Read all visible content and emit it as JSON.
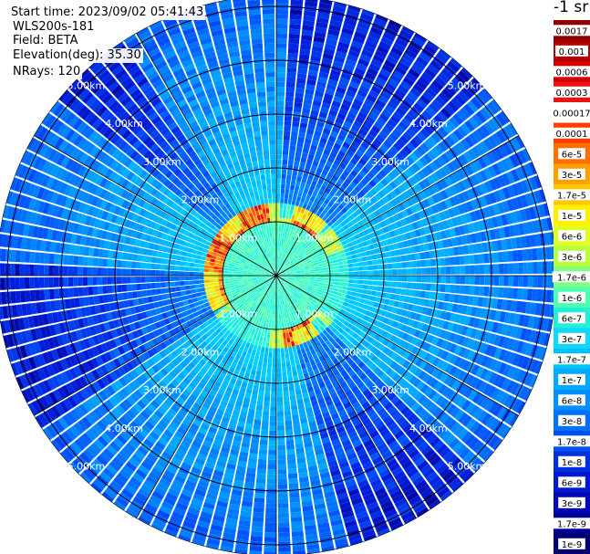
{
  "info": {
    "start_time": "Start time: 2023/09/02 05:41:43",
    "instrument": "WLS200s-181",
    "field": "Field: BETA",
    "elevation": "Elevation(deg): 35.30",
    "nrays": "NRays: 120"
  },
  "chart_data": {
    "type": "heatmap",
    "projection": "polar (PPI scan)",
    "title": "",
    "field": "BETA",
    "elevation_deg": 35.3,
    "n_rays": 120,
    "range_ring_labels": [
      "1.00km",
      "2.00km",
      "3.00km",
      "4.00km",
      "5.00km"
    ],
    "range_rings_km": [
      1,
      2,
      3,
      4,
      5
    ],
    "max_range_km": 5.2,
    "azimuth_spokes_deg": [
      0,
      30,
      60,
      90,
      120,
      150,
      180,
      210,
      240,
      270,
      300,
      330
    ],
    "grid": true,
    "colorbar": {
      "unit_label": "-1 sr",
      "placement": "right",
      "tick_labels": [
        "0.0017",
        "0.001",
        "0.0006",
        "0.0003",
        "0.00017",
        "0.0001",
        "6e-5",
        "3e-5",
        "1.7e-5",
        "1e-5",
        "6e-6",
        "3e-6",
        "1.7e-6",
        "1e-6",
        "6e-7",
        "3e-7",
        "1.7e-7",
        "1e-7",
        "6e-8",
        "3e-8",
        "1.7e-8",
        "1e-8",
        "6e-9",
        "3e-9",
        "1.7e-9",
        "1e-9"
      ],
      "colors": [
        "#8c0000",
        "#b00000",
        "#d40000",
        "#f01010",
        "#ffffff",
        "#ff4000",
        "#ff7000",
        "#ffa000",
        "#ffc800",
        "#ffef00",
        "#e0ff20",
        "#b8ff40",
        "#80ff80",
        "#50ffb0",
        "#20f0d8",
        "#10d8f8",
        "#00c0ff",
        "#00a8ff",
        "#0090ff",
        "#0070ff",
        "#0050f0",
        "#0030e0",
        "#0018d0",
        "#0008b8",
        "#000098",
        "#000070"
      ]
    },
    "backscatter_pattern": {
      "near_field_ring_km": [
        1.0,
        1.2
      ],
      "near_field_ring_level": "3e-5",
      "near_field_interior_level": "1e-7",
      "mid_field_level": "3e-8",
      "far_field_level": "1e-8"
    }
  }
}
